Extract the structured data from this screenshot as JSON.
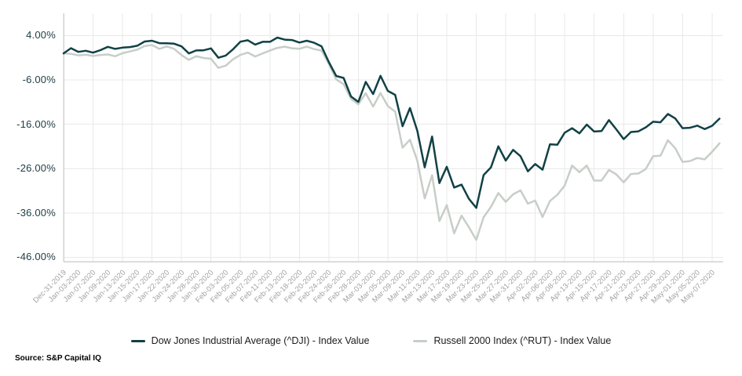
{
  "chart_data": {
    "type": "line",
    "title": "",
    "y_unit": "%",
    "grid": "both",
    "legend_position": "bottom",
    "ylim": [
      -46,
      4
    ],
    "y_tick_labels": [
      "4.00%",
      "-6.00%",
      "-16.00%",
      "-26.00%",
      "-36.00%",
      "-46.00%"
    ],
    "y_tick_values": [
      4,
      -6,
      -16,
      -26,
      -36,
      -46
    ],
    "x_tick_label_every": 2,
    "x_gridline_every": 4,
    "x_tick_labels": [
      "Dec-31-2019",
      "Jan-03-2020",
      "Jan-07-2020",
      "Jan-09-2020",
      "Jan-13-2020",
      "Jan-15-2020",
      "Jan-17-2020",
      "Jan-22-2020",
      "Jan-24-2020",
      "Jan-28-2020",
      "Jan-30-2020",
      "Feb-03-2020",
      "Feb-05-2020",
      "Feb-07-2020",
      "Feb-11-2020",
      "Feb-13-2020",
      "Feb-18-2020",
      "Feb-20-2020",
      "Feb-24-2020",
      "Feb-26-2020",
      "Feb-28-2020",
      "Mar-03-2020",
      "Mar-05-2020",
      "Mar-09-2020",
      "Mar-11-2020",
      "Mar-13-2020",
      "Mar-17-2020",
      "Mar-19-2020",
      "Mar-23-2020",
      "Mar-25-2020",
      "Mar-27-2020",
      "Mar-31-2020",
      "Apr-02-2020",
      "Apr-06-2020",
      "Apr-08-2020",
      "Apr-13-2020",
      "Apr-15-2020",
      "Apr-17-2020",
      "Apr-21-2020",
      "Apr-23-2020",
      "Apr-27-2020",
      "Apr-29-2020",
      "May-01-2020",
      "May-05-2020",
      "May-07-2020"
    ],
    "series": [
      {
        "name": "Dow Jones Industrial Average (^DJI) - Index Value",
        "color": "#114145",
        "values": [
          0.0,
          1.16,
          0.34,
          0.58,
          0.16,
          0.72,
          1.47,
          1.0,
          1.29,
          1.41,
          1.72,
          2.66,
          2.84,
          2.3,
          2.27,
          2.18,
          1.58,
          -0.01,
          0.65,
          0.69,
          1.12,
          -0.99,
          -0.49,
          0.94,
          2.64,
          2.95,
          1.98,
          2.59,
          2.59,
          3.55,
          3.1,
          3.01,
          2.43,
          2.84,
          2.39,
          1.59,
          -2.02,
          -5.11,
          -5.54,
          -9.71,
          -10.96,
          -6.43,
          -9.18,
          -5.07,
          -8.47,
          -9.37,
          -16.43,
          -12.33,
          -17.47,
          -25.71,
          -18.76,
          -29.26,
          -25.58,
          -30.27,
          -29.61,
          -32.81,
          -34.85,
          -27.45,
          -25.71,
          -20.98,
          -24.18,
          -21.76,
          -23.2,
          -26.61,
          -24.97,
          -26.23,
          -20.53,
          -20.62,
          -17.89,
          -16.89,
          -18.04,
          -16.08,
          -17.64,
          -17.52,
          -15.05,
          -17.13,
          -19.34,
          -17.74,
          -17.6,
          -16.69,
          -15.43,
          -15.55,
          -13.68,
          -14.69,
          -16.87,
          -16.78,
          -16.31,
          -17.08,
          -16.34,
          -14.74
        ]
      },
      {
        "name": "Russell 2000 Index (^RUT) - Index Value",
        "color": "#c7cec8",
        "values": [
          0.0,
          -0.1,
          -0.46,
          -0.31,
          -0.59,
          -0.38,
          -0.25,
          -0.65,
          0.03,
          0.42,
          0.83,
          1.65,
          1.87,
          1.0,
          1.57,
          1.0,
          -0.38,
          -1.46,
          -0.63,
          -1.05,
          -1.22,
          -3.26,
          -2.78,
          -1.33,
          -0.36,
          0.18,
          -0.7,
          -0.01,
          0.61,
          1.23,
          1.5,
          1.15,
          1.02,
          1.52,
          0.95,
          0.61,
          -2.42,
          -5.89,
          -6.95,
          -10.25,
          -11.51,
          -8.99,
          -12.0,
          -8.94,
          -11.89,
          -13.14,
          -21.28,
          -19.47,
          -24.22,
          -32.7,
          -27.47,
          -37.82,
          -34.22,
          -40.6,
          -36.61,
          -39.23,
          -42.09,
          -36.97,
          -34.62,
          -31.5,
          -33.5,
          -31.8,
          -30.9,
          -33.9,
          -33.2,
          -36.9,
          -33.3,
          -31.9,
          -29.8,
          -25.3,
          -26.8,
          -25.3,
          -28.7,
          -28.7,
          -26.3,
          -27.3,
          -29.1,
          -27.2,
          -27.1,
          -26.1,
          -23.2,
          -23.1,
          -19.6,
          -21.4,
          -24.5,
          -24.3,
          -23.6,
          -23.9,
          -22.2,
          -20.3
        ]
      }
    ]
  },
  "legend": {
    "dji_label": "Dow Jones Industrial Average (^DJI) - Index Value",
    "rut_label": "Russell 2000 Index (^RUT) - Index Value"
  },
  "source_note": "Source: S&P Capital IQ",
  "colors": {
    "background": "#ffffff",
    "dji_line": "#114145",
    "rut_line": "#c7cec8",
    "gridline": "#e9e9e9",
    "axis_line": "#cfd3d2",
    "y_label_text": "#1e3c44",
    "x_label_text": "#a2a2a2",
    "legend_text": "#1b1b1b",
    "source_text": "#000000"
  }
}
